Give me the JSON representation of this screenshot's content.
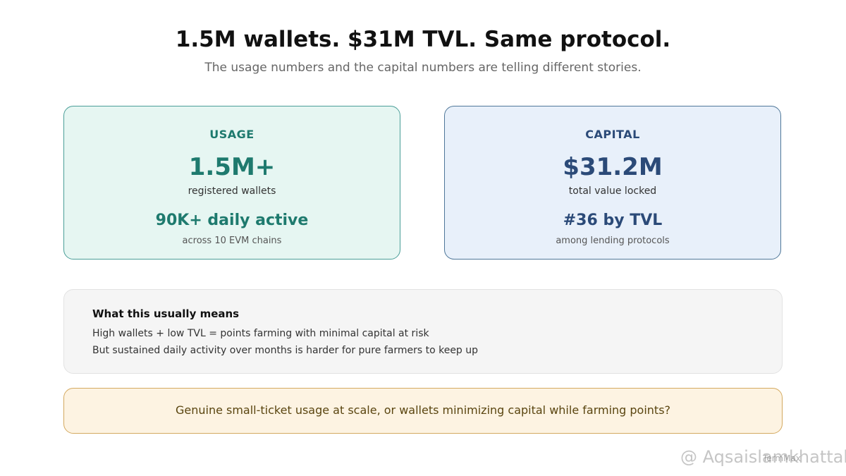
{
  "header": {
    "title": "1.5M wallets. $31M TVL. Same protocol.",
    "subtitle": "The usage numbers and the capital numbers are telling different stories."
  },
  "cards": [
    {
      "label": "USAGE",
      "big": "1.5M+",
      "big_caption": "registered wallets",
      "secondary": "90K+ daily active",
      "secondary_caption": "across 10 EVM chains"
    },
    {
      "label": "CAPITAL",
      "big": "$31.2M",
      "big_caption": "total value locked",
      "secondary": "#36 by TVL",
      "secondary_caption": "among lending protocols"
    }
  ],
  "note": {
    "heading": "What this usually means",
    "lines": [
      "High wallets + low TVL = points farming with minimal capital at risk",
      "But sustained daily activity over months is harder for pure farmers to keep up"
    ]
  },
  "question": "Genuine small-ticket usage at scale, or wallets minimizing capital while farming points?",
  "watermark": {
    "handle": "@ Aqsaislamkhattak",
    "source": "TermMax"
  }
}
